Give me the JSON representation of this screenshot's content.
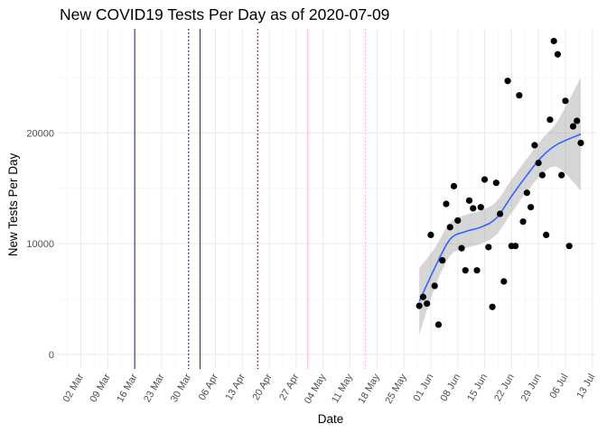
{
  "chart_data": {
    "type": "scatter",
    "title": "New COVID19 Tests Per Day as of 2020-07-09",
    "xlabel": "Date",
    "ylabel": "New Tests Per Day",
    "x_ticks": [
      "02 Mar",
      "09 Mar",
      "16 Mar",
      "23 Mar",
      "30 Mar",
      "06 Apr",
      "13 Apr",
      "20 Apr",
      "27 Apr",
      "04 May",
      "11 May",
      "18 May",
      "25 May",
      "01 Jun",
      "08 Jun",
      "15 Jun",
      "22 Jun",
      "29 Jun",
      "06 Jul",
      "13 Jul"
    ],
    "x_tick_dates": [
      "2020-03-02",
      "2020-03-09",
      "2020-03-16",
      "2020-03-23",
      "2020-03-30",
      "2020-04-06",
      "2020-04-13",
      "2020-04-20",
      "2020-04-27",
      "2020-05-04",
      "2020-05-11",
      "2020-05-18",
      "2020-05-25",
      "2020-06-01",
      "2020-06-08",
      "2020-06-15",
      "2020-06-22",
      "2020-06-29",
      "2020-07-06",
      "2020-07-13"
    ],
    "y_ticks": [
      0,
      10000,
      20000
    ],
    "y_tick_labels": [
      "0",
      "10000",
      "20000"
    ],
    "xlim": [
      "2020-02-25",
      "2020-07-14"
    ],
    "ylim": [
      -1300,
      29400
    ],
    "grid": true,
    "vlines": [
      {
        "date": "2020-03-16",
        "color": "#191970",
        "style": "solid"
      },
      {
        "date": "2020-03-30",
        "color": "#191970",
        "style": "dotted"
      },
      {
        "date": "2020-04-02",
        "color": "#8b0000",
        "style": "solid"
      },
      {
        "date": "2020-04-17",
        "color": "#8b0000",
        "style": "dotted"
      },
      {
        "date": "2020-04-30",
        "color": "#ffb6c1",
        "style": "solid"
      },
      {
        "date": "2020-05-15",
        "color": "#ffb6c1",
        "style": "dotted"
      }
    ],
    "points": [
      {
        "x": "2020-05-29",
        "y": 4400
      },
      {
        "x": "2020-05-30",
        "y": 5200
      },
      {
        "x": "2020-05-31",
        "y": 4600
      },
      {
        "x": "2020-06-01",
        "y": 10800
      },
      {
        "x": "2020-06-02",
        "y": 6200
      },
      {
        "x": "2020-06-03",
        "y": 2700
      },
      {
        "x": "2020-06-04",
        "y": 8500
      },
      {
        "x": "2020-06-05",
        "y": 13600
      },
      {
        "x": "2020-06-06",
        "y": 11500
      },
      {
        "x": "2020-06-07",
        "y": 15200
      },
      {
        "x": "2020-06-08",
        "y": 12100
      },
      {
        "x": "2020-06-09",
        "y": 9600
      },
      {
        "x": "2020-06-10",
        "y": 7600
      },
      {
        "x": "2020-06-11",
        "y": 13900
      },
      {
        "x": "2020-06-12",
        "y": 13200
      },
      {
        "x": "2020-06-13",
        "y": 7600
      },
      {
        "x": "2020-06-14",
        "y": 13300
      },
      {
        "x": "2020-06-15",
        "y": 15800
      },
      {
        "x": "2020-06-16",
        "y": 9700
      },
      {
        "x": "2020-06-17",
        "y": 4300
      },
      {
        "x": "2020-06-18",
        "y": 15500
      },
      {
        "x": "2020-06-19",
        "y": 12700
      },
      {
        "x": "2020-06-20",
        "y": 6600
      },
      {
        "x": "2020-06-21",
        "y": 24700
      },
      {
        "x": "2020-06-22",
        "y": 9800
      },
      {
        "x": "2020-06-23",
        "y": 9800
      },
      {
        "x": "2020-06-24",
        "y": 23400
      },
      {
        "x": "2020-06-25",
        "y": 12000
      },
      {
        "x": "2020-06-26",
        "y": 14600
      },
      {
        "x": "2020-06-27",
        "y": 13300
      },
      {
        "x": "2020-06-28",
        "y": 18900
      },
      {
        "x": "2020-06-29",
        "y": 17300
      },
      {
        "x": "2020-06-30",
        "y": 16200
      },
      {
        "x": "2020-07-01",
        "y": 10800
      },
      {
        "x": "2020-07-02",
        "y": 21200
      },
      {
        "x": "2020-07-03",
        "y": 28300
      },
      {
        "x": "2020-07-04",
        "y": 27100
      },
      {
        "x": "2020-07-05",
        "y": 16200
      },
      {
        "x": "2020-07-06",
        "y": 22900
      },
      {
        "x": "2020-07-07",
        "y": 9800
      },
      {
        "x": "2020-07-08",
        "y": 20600
      },
      {
        "x": "2020-07-09",
        "y": 21100
      },
      {
        "x": "2020-07-10",
        "y": 19100
      }
    ],
    "smooth": {
      "color": "#3366ff",
      "band_color": "#999999",
      "points": [
        {
          "x": "2020-05-29",
          "y": 4800,
          "lo": 1800,
          "hi": 7800
        },
        {
          "x": "2020-06-02",
          "y": 7800,
          "lo": 6000,
          "hi": 9600
        },
        {
          "x": "2020-06-06",
          "y": 10400,
          "lo": 8900,
          "hi": 11900
        },
        {
          "x": "2020-06-10",
          "y": 11100,
          "lo": 9600,
          "hi": 12600
        },
        {
          "x": "2020-06-14",
          "y": 11500,
          "lo": 10000,
          "hi": 13000
        },
        {
          "x": "2020-06-18",
          "y": 12300,
          "lo": 10800,
          "hi": 13800
        },
        {
          "x": "2020-06-22",
          "y": 14300,
          "lo": 12800,
          "hi": 15800
        },
        {
          "x": "2020-06-26",
          "y": 16200,
          "lo": 14700,
          "hi": 17700
        },
        {
          "x": "2020-06-30",
          "y": 17900,
          "lo": 16300,
          "hi": 19500
        },
        {
          "x": "2020-07-04",
          "y": 19000,
          "lo": 16900,
          "hi": 21100
        },
        {
          "x": "2020-07-10",
          "y": 19900,
          "lo": 14800,
          "hi": 25000
        }
      ]
    }
  }
}
